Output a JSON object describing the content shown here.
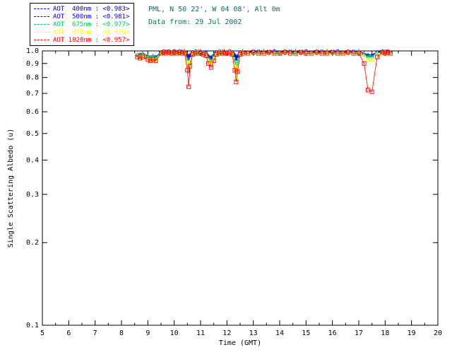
{
  "header": {
    "location": "PML, N 50 22', W 04 08', Alt 0m",
    "data_from": "Data from: 29 Jul 2002",
    "color": "#007070"
  },
  "legend": {
    "entries": [
      {
        "label": "AOT  400nm : <0.983>",
        "color": "#000090",
        "symbol": "plus"
      },
      {
        "label": "AOT  500nm : <0.981>",
        "color": "#0000ff",
        "symbol": "asterisk"
      },
      {
        "label": "AOT  675nm : <0.977>",
        "color": "#00cc66",
        "symbol": "diamond"
      },
      {
        "label": "AOT  870nm : <0.976>",
        "color": "#ffff00",
        "symbol": "triangle"
      },
      {
        "label": "AOT 1020nm : <0.957>",
        "color": "#ff0000",
        "symbol": "square"
      }
    ]
  },
  "chart_data": {
    "type": "line",
    "title": "",
    "xlabel": "Time (GMT)",
    "ylabel": "Single Scattering Albedo (u)",
    "xlim": [
      5,
      20
    ],
    "ylim": [
      0.1,
      1.0
    ],
    "yscale": "log",
    "grid": false,
    "legend_position": "top-left",
    "xticks": [
      5,
      6,
      7,
      8,
      9,
      10,
      11,
      12,
      13,
      14,
      15,
      16,
      17,
      18,
      19,
      20
    ],
    "yticks": [
      0.1,
      0.2,
      0.3,
      0.4,
      0.5,
      0.6,
      0.7,
      0.8,
      0.9,
      1.0
    ],
    "x": [
      8.6,
      8.7,
      8.8,
      9.0,
      9.1,
      9.2,
      9.3,
      9.5,
      9.6,
      9.7,
      9.8,
      9.9,
      10.0,
      10.1,
      10.2,
      10.3,
      10.4,
      10.5,
      10.55,
      10.6,
      10.7,
      10.8,
      10.9,
      11.0,
      11.1,
      11.2,
      11.3,
      11.4,
      11.5,
      11.6,
      11.7,
      11.8,
      11.9,
      12.0,
      12.1,
      12.2,
      12.3,
      12.35,
      12.4,
      12.5,
      12.6,
      12.8,
      13.0,
      13.2,
      13.4,
      13.6,
      13.8,
      14.0,
      14.2,
      14.4,
      14.6,
      14.8,
      15.0,
      15.2,
      15.4,
      15.6,
      15.8,
      16.0,
      16.2,
      16.4,
      16.6,
      16.8,
      17.0,
      17.2,
      17.35,
      17.5,
      17.7,
      17.9,
      18.0,
      18.1,
      18.2
    ],
    "series": [
      {
        "name": "AOT 400nm",
        "mean": "<0.983>",
        "color": "#000090",
        "symbol": "plus",
        "values": [
          0.97,
          0.97,
          0.98,
          0.96,
          0.95,
          0.96,
          0.95,
          0.99,
          1.0,
          0.99,
          1.0,
          0.99,
          1.0,
          0.99,
          1.0,
          0.99,
          1.0,
          0.97,
          0.95,
          0.97,
          0.99,
          1.0,
          0.99,
          1.0,
          0.99,
          0.99,
          0.96,
          0.95,
          0.97,
          0.99,
          1.0,
          0.99,
          1.0,
          0.99,
          1.0,
          0.99,
          0.97,
          0.95,
          0.96,
          0.99,
          1.0,
          0.99,
          1.0,
          0.99,
          1.0,
          0.99,
          1.0,
          0.99,
          1.0,
          0.99,
          1.0,
          0.99,
          1.0,
          0.99,
          1.0,
          0.99,
          1.0,
          0.99,
          1.0,
          0.99,
          1.0,
          0.99,
          1.0,
          0.98,
          0.97,
          0.97,
          0.99,
          1.0,
          0.99,
          1.0,
          0.99
        ]
      },
      {
        "name": "AOT 500nm",
        "mean": "<0.981>",
        "color": "#0000ff",
        "symbol": "asterisk",
        "values": [
          0.96,
          0.97,
          0.97,
          0.95,
          0.94,
          0.95,
          0.95,
          0.99,
          0.99,
          1.0,
          0.99,
          0.99,
          1.0,
          0.99,
          0.99,
          1.0,
          0.99,
          0.96,
          0.93,
          0.96,
          0.99,
          0.99,
          1.0,
          0.99,
          0.99,
          0.99,
          0.95,
          0.94,
          0.96,
          0.99,
          0.99,
          1.0,
          0.99,
          0.99,
          1.0,
          0.99,
          0.96,
          0.93,
          0.95,
          0.99,
          0.99,
          0.99,
          0.99,
          1.0,
          0.99,
          0.99,
          1.0,
          0.99,
          0.99,
          1.0,
          0.99,
          0.99,
          1.0,
          0.99,
          0.99,
          1.0,
          0.99,
          0.99,
          1.0,
          0.99,
          0.99,
          1.0,
          0.99,
          0.97,
          0.96,
          0.96,
          0.99,
          0.99,
          1.0,
          0.99,
          0.99
        ]
      },
      {
        "name": "AOT 675nm",
        "mean": "<0.977>",
        "color": "#00cc66",
        "symbol": "diamond",
        "values": [
          0.96,
          0.96,
          0.97,
          0.95,
          0.94,
          0.95,
          0.94,
          0.99,
          0.98,
          0.99,
          0.99,
          0.98,
          0.99,
          0.99,
          0.98,
          0.99,
          0.99,
          0.93,
          0.84,
          0.9,
          0.98,
          0.99,
          0.99,
          0.98,
          0.99,
          0.98,
          0.94,
          0.92,
          0.96,
          0.98,
          0.99,
          0.99,
          0.98,
          0.99,
          0.99,
          0.98,
          0.92,
          0.86,
          0.9,
          0.98,
          0.99,
          0.99,
          0.98,
          0.99,
          0.99,
          0.98,
          0.99,
          0.99,
          0.98,
          0.99,
          0.99,
          0.98,
          0.99,
          0.99,
          0.98,
          0.99,
          0.99,
          0.98,
          0.99,
          0.99,
          0.98,
          0.99,
          0.99,
          0.97,
          0.95,
          0.95,
          0.98,
          0.99,
          0.99,
          0.98,
          0.99
        ]
      },
      {
        "name": "AOT 870nm",
        "mean": "<0.976>",
        "color": "#ffff00",
        "symbol": "triangle",
        "values": [
          0.96,
          0.95,
          0.96,
          0.94,
          0.93,
          0.94,
          0.93,
          0.98,
          0.99,
          0.98,
          0.98,
          0.99,
          0.98,
          0.98,
          0.99,
          0.98,
          0.98,
          0.91,
          0.88,
          0.92,
          0.98,
          0.98,
          0.99,
          0.98,
          0.98,
          0.97,
          0.92,
          0.9,
          0.94,
          0.98,
          0.98,
          0.99,
          0.98,
          0.98,
          0.99,
          0.98,
          0.88,
          0.8,
          0.86,
          0.98,
          0.98,
          0.98,
          0.99,
          0.98,
          0.98,
          0.99,
          0.98,
          0.98,
          0.99,
          0.98,
          0.98,
          0.99,
          0.98,
          0.98,
          0.99,
          0.98,
          0.98,
          0.99,
          0.98,
          0.98,
          0.99,
          0.98,
          0.98,
          0.96,
          0.93,
          0.93,
          0.98,
          0.98,
          0.99,
          0.98,
          0.98
        ]
      },
      {
        "name": "AOT 1020nm",
        "mean": "<0.957>",
        "color": "#ff0000",
        "symbol": "square",
        "values": [
          0.95,
          0.94,
          0.95,
          0.93,
          0.92,
          0.93,
          0.92,
          0.98,
          0.99,
          0.98,
          0.99,
          0.98,
          0.99,
          0.98,
          0.99,
          0.98,
          0.98,
          0.85,
          0.74,
          0.88,
          0.97,
          0.98,
          0.98,
          0.98,
          0.97,
          0.96,
          0.9,
          0.87,
          0.92,
          0.97,
          0.98,
          0.98,
          0.98,
          0.98,
          0.98,
          0.97,
          0.85,
          0.77,
          0.84,
          0.97,
          0.98,
          0.98,
          0.99,
          0.98,
          0.98,
          0.99,
          0.98,
          0.98,
          0.99,
          0.98,
          0.98,
          0.99,
          0.98,
          0.98,
          0.99,
          0.98,
          0.98,
          0.99,
          0.98,
          0.98,
          0.99,
          0.98,
          0.98,
          0.9,
          0.72,
          0.71,
          0.95,
          0.99,
          0.98,
          0.99,
          0.98
        ]
      }
    ]
  }
}
